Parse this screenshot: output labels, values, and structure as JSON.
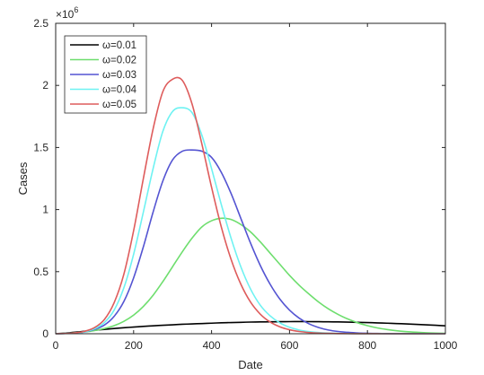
{
  "chart_data": {
    "type": "line",
    "title": "",
    "xlabel": "Date",
    "ylabel": "Cases",
    "xlim": [
      0,
      1000
    ],
    "ylim": [
      0,
      2500000
    ],
    "x_ticks": [
      0,
      200,
      400,
      600,
      800,
      1000
    ],
    "y_ticks": [
      0,
      500000,
      1000000,
      1500000,
      2000000,
      2500000
    ],
    "x_tick_labels": [
      "0",
      "200",
      "400",
      "600",
      "800",
      "1000"
    ],
    "y_tick_labels": [
      "0",
      "0.5",
      "1",
      "1.5",
      "2",
      "2.5"
    ],
    "y_multiplier": "×10",
    "y_multiplier_exponent": "6",
    "grid": false,
    "legend_position": "top-left",
    "x": [
      0,
      25,
      50,
      75,
      100,
      125,
      150,
      175,
      200,
      225,
      250,
      275,
      300,
      325,
      350,
      375,
      400,
      425,
      450,
      475,
      500,
      525,
      550,
      575,
      600,
      625,
      650,
      675,
      700,
      725,
      750,
      775,
      800,
      825,
      850,
      875,
      900,
      925,
      950,
      975,
      1000
    ],
    "series": [
      {
        "name": "ω=0.01",
        "color": "#000000",
        "values": [
          0,
          5000,
          12000,
          20000,
          28000,
          35000,
          42000,
          48000,
          54000,
          59000,
          64000,
          68000,
          72000,
          76000,
          79000,
          82000,
          85000,
          88000,
          90000,
          92000,
          94000,
          95000,
          96000,
          97000,
          97500,
          98000,
          97500,
          97000,
          96000,
          95000,
          93500,
          92000,
          90000,
          87500,
          85000,
          82000,
          79000,
          75500,
          72000,
          68000,
          64000
        ]
      },
      {
        "name": "ω=0.02",
        "color": "#6ede6e",
        "values": [
          0,
          3000,
          8000,
          15000,
          26000,
          42000,
          65000,
          100000,
          150000,
          220000,
          310000,
          420000,
          540000,
          660000,
          770000,
          860000,
          910000,
          930000,
          920000,
          880000,
          820000,
          740000,
          650000,
          560000,
          470000,
          390000,
          320000,
          255000,
          200000,
          155000,
          118000,
          88000,
          65000,
          47000,
          34000,
          24000,
          17000,
          12000,
          8000,
          5000,
          3000
        ]
      },
      {
        "name": "ω=0.03",
        "color": "#5454d2",
        "values": [
          0,
          2000,
          6000,
          15000,
          35000,
          70000,
          140000,
          260000,
          450000,
          700000,
          980000,
          1230000,
          1400000,
          1470000,
          1480000,
          1470000,
          1420000,
          1300000,
          1130000,
          930000,
          730000,
          550000,
          400000,
          280000,
          190000,
          125000,
          80000,
          50000,
          30000,
          18000,
          11000,
          6000,
          3500,
          2000,
          1000,
          600,
          300,
          150,
          80,
          40,
          20
        ]
      },
      {
        "name": "ω=0.04",
        "color": "#6ef2f2",
        "values": [
          0,
          2000,
          6000,
          16000,
          40000,
          90000,
          190000,
          370000,
          640000,
          980000,
          1330000,
          1630000,
          1790000,
          1820000,
          1780000,
          1600000,
          1330000,
          1040000,
          770000,
          540000,
          360000,
          230000,
          145000,
          88000,
          52000,
          30000,
          17000,
          9500,
          5000,
          2700,
          1400,
          700,
          350,
          170,
          80,
          40,
          20,
          10,
          5,
          2,
          1
        ]
      },
      {
        "name": "ω=0.05",
        "color": "#de5c5c",
        "values": [
          0,
          2000,
          7000,
          20000,
          50000,
          115000,
          250000,
          480000,
          830000,
          1250000,
          1650000,
          1950000,
          2050000,
          2040000,
          1850000,
          1530000,
          1180000,
          860000,
          600000,
          400000,
          255000,
          158000,
          95000,
          56000,
          32000,
          18000,
          10000,
          5500,
          3000,
          1600,
          850,
          450,
          230,
          120,
          60,
          30,
          15,
          8,
          4,
          2,
          1
        ]
      }
    ]
  }
}
